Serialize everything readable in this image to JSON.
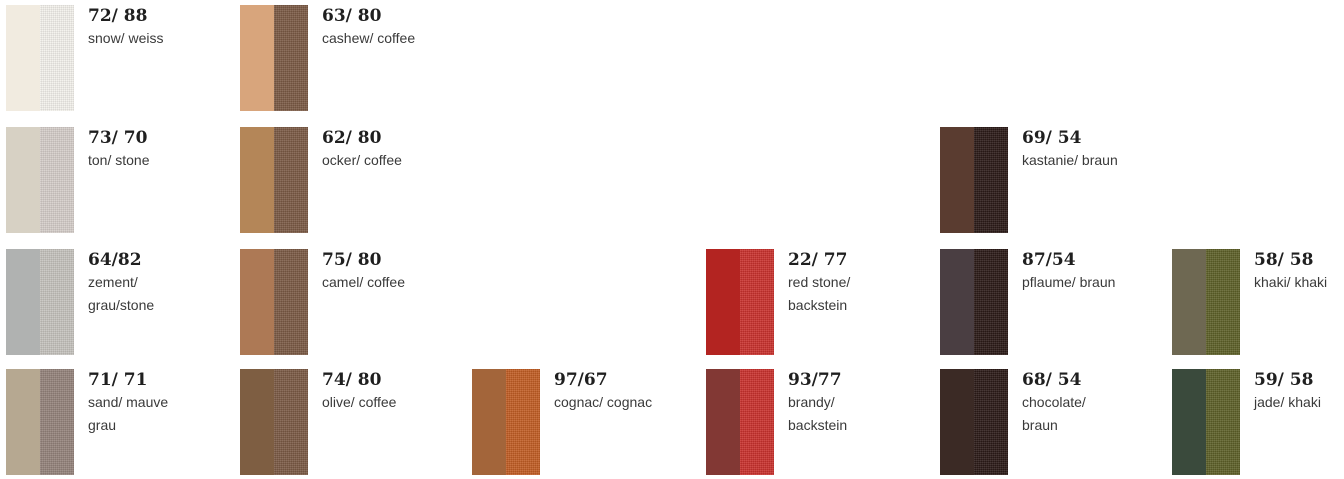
{
  "swatches": [
    {
      "code": "72/ 88",
      "name": "snow/ weiss",
      "colors": [
        "#f1ebe0",
        "#f3f1ec"
      ]
    },
    {
      "code": "63/ 80",
      "name": "cashew/ coffee",
      "colors": [
        "#d8a57c",
        "#7b5a45"
      ]
    },
    {
      "code": "73/ 70",
      "name": "ton/ stone",
      "colors": [
        "#d7d1c4",
        "#d5cdc9"
      ]
    },
    {
      "code": "62/ 80",
      "name": "ocker/ coffee",
      "colors": [
        "#b48658",
        "#7b5a45"
      ]
    },
    {
      "code": "69/ 54",
      "name": "kastanie/ braun",
      "colors": [
        "#5a3c30",
        "#2b1a17"
      ]
    },
    {
      "code": "64/82",
      "name": "zement/ grau/stone",
      "colors": [
        "#b0b2b1",
        "#c5c2bd"
      ]
    },
    {
      "code": "75/ 80",
      "name": "camel/ coffee",
      "colors": [
        "#ad7955",
        "#7b5a45"
      ]
    },
    {
      "code": "22/ 77",
      "name": "red stone/ backstein",
      "colors": [
        "#b32421",
        "#c9312d"
      ]
    },
    {
      "code": "87/54",
      "name": "pflaume/ braun",
      "colors": [
        "#4a3e42",
        "#2b1a17"
      ]
    },
    {
      "code": "58/ 58",
      "name": "khaki/ khaki",
      "colors": [
        "#6e6852",
        "#5d6028"
      ]
    },
    {
      "code": "71/ 71",
      "name": "sand/ mauve grau",
      "colors": [
        "#b6a891",
        "#94837b"
      ]
    },
    {
      "code": "74/ 80",
      "name": "olive/ coffee",
      "colors": [
        "#7e5e42",
        "#7b5a45"
      ]
    },
    {
      "code": "97/67",
      "name": "cognac/ cognac",
      "colors": [
        "#a3653a",
        "#c15d24"
      ]
    },
    {
      "code": "93/77",
      "name": "brandy/ backstein",
      "colors": [
        "#823834",
        "#c9312d"
      ]
    },
    {
      "code": "68/ 54",
      "name": "chocolate/ braun",
      "colors": [
        "#3b2a25",
        "#2b1a17"
      ]
    },
    {
      "code": "59/ 58",
      "name": "jade/ khaki",
      "colors": [
        "#3a4a3c",
        "#5d6028"
      ]
    }
  ]
}
